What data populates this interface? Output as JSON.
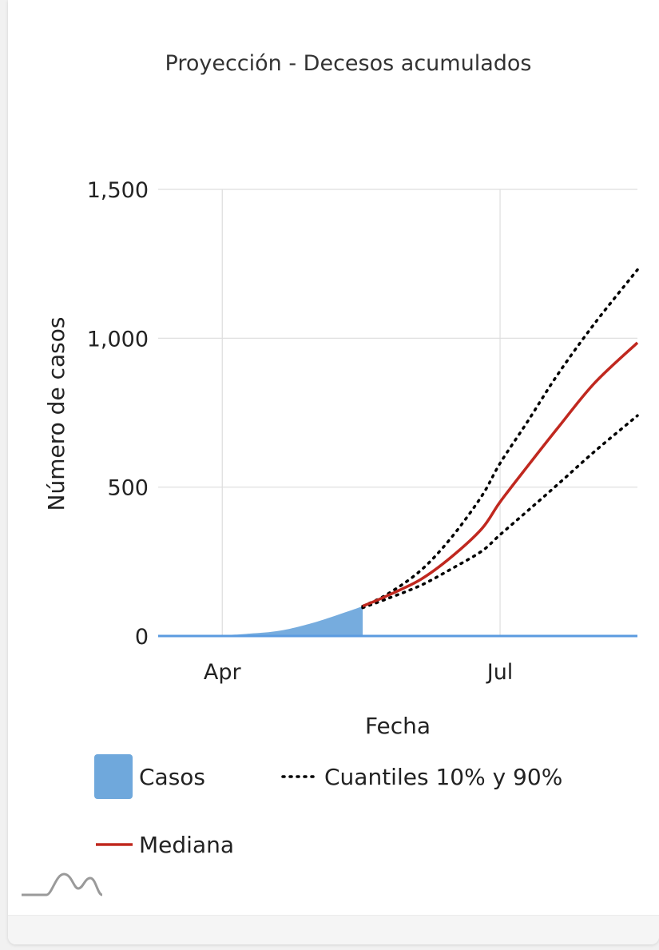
{
  "chart_data": {
    "type": "line",
    "title": "Proyección - Decesos acumulados",
    "xlabel": "Fecha",
    "ylabel": "Número de casos",
    "x_ticks": [
      "Apr",
      "Jul"
    ],
    "y_ticks": [
      "0",
      "500",
      "1,000",
      "1,500"
    ],
    "ylim": [
      0,
      1500
    ],
    "xlim": [
      "2020-03-11",
      "2020-08-15"
    ],
    "grid": true,
    "legend_position": "bottom",
    "series": [
      {
        "name": "Casos",
        "style": "area",
        "color": "#6fa8dc",
        "x": [
          "2020-03-11",
          "2020-04-01",
          "2020-04-10",
          "2020-04-20",
          "2020-05-01",
          "2020-05-10",
          "2020-05-17"
        ],
        "values": [
          0,
          3,
          8,
          18,
          45,
          75,
          100
        ]
      },
      {
        "name": "Cuantiles 10% y 90%",
        "style": "dotted",
        "color": "#000000",
        "x": [
          "2020-05-17",
          "2020-05-25",
          "2020-06-05",
          "2020-06-15",
          "2020-06-25",
          "2020-07-01",
          "2020-07-10",
          "2020-07-20",
          "2020-08-01",
          "2020-08-15"
        ],
        "values": [
          100,
          140,
          220,
          330,
          470,
          580,
          720,
          880,
          1050,
          1230
        ]
      },
      {
        "name": "Cuantiles 10% y 90%",
        "style": "dotted",
        "color": "#000000",
        "x": [
          "2020-05-17",
          "2020-05-25",
          "2020-06-05",
          "2020-06-15",
          "2020-06-25",
          "2020-07-01",
          "2020-07-10",
          "2020-07-20",
          "2020-08-01",
          "2020-08-15"
        ],
        "values": [
          95,
          125,
          170,
          225,
          285,
          340,
          420,
          510,
          620,
          740
        ]
      },
      {
        "name": "Mediana",
        "style": "line",
        "color": "#c0281f",
        "x": [
          "2020-05-17",
          "2020-05-25",
          "2020-06-05",
          "2020-06-15",
          "2020-06-25",
          "2020-07-01",
          "2020-07-10",
          "2020-07-20",
          "2020-08-01",
          "2020-08-15"
        ],
        "values": [
          100,
          135,
          190,
          265,
          360,
          450,
          570,
          700,
          850,
          985
        ]
      },
      {
        "name": "Casos",
        "style": "line",
        "color": "#5b9be0",
        "x": [
          "2020-03-11",
          "2020-08-15"
        ],
        "values": [
          0,
          0
        ]
      }
    ],
    "x_tick_values": [
      "2020-04-01",
      "2020-07-01"
    ],
    "y_tick_values": [
      0,
      500,
      1000,
      1500
    ],
    "legend": [
      {
        "label": "Casos",
        "swatch": "box",
        "color": "#6fa8dc"
      },
      {
        "label": "Cuantiles 10% y 90%",
        "swatch": "dotted",
        "color": "#000000"
      },
      {
        "label": "Mediana",
        "swatch": "line",
        "color": "#c0281f"
      }
    ]
  },
  "brand": {
    "icon": "mountain-logo-icon"
  }
}
